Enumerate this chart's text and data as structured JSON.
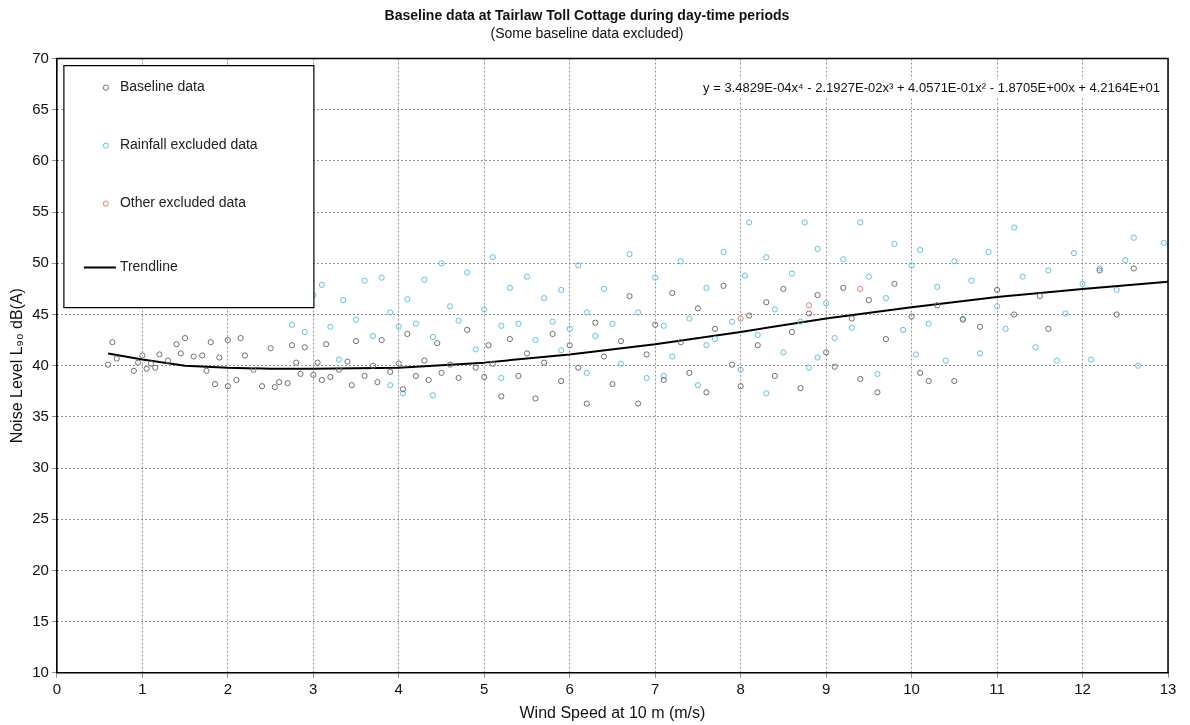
{
  "chart_data": {
    "type": "scatter",
    "title": "Baseline data at Tairlaw Toll Cottage during day-time periods",
    "subtitle": "(Some baseline data excluded)",
    "xlabel": "Wind Speed at 10 m (m/s)",
    "ylabel": "Noise Level L₉₀ dB(A)",
    "xlim": [
      0,
      13
    ],
    "xticks": [
      0,
      1,
      2,
      3,
      4,
      5,
      6,
      7,
      8,
      9,
      10,
      11,
      12,
      13
    ],
    "ylim": [
      10,
      70
    ],
    "yticks": [
      10,
      15,
      20,
      25,
      30,
      35,
      40,
      45,
      50,
      55,
      60,
      65,
      70
    ],
    "grid": true,
    "legend": "top left",
    "marker": "circle",
    "annotations": [
      "y = 3.4829E-04x⁴ - 2.1927E-02x³ + 4.0571E-01x² - 1.8705E+00x + 4.2164E+01"
    ],
    "series": [
      {
        "name": "Baseline data",
        "type": "scatter",
        "color": "#707070",
        "x": [
          0.6,
          0.65,
          0.7,
          0.9,
          0.95,
          1.0,
          1.05,
          1.1,
          1.15,
          1.2,
          1.3,
          1.4,
          1.45,
          1.5,
          1.6,
          1.7,
          1.75,
          1.8,
          1.85,
          1.9,
          2.0,
          2.0,
          2.1,
          2.15,
          2.2,
          2.3,
          2.4,
          2.5,
          2.55,
          2.6,
          2.7,
          2.75,
          2.8,
          2.85,
          2.9,
          3.0,
          3.05,
          3.1,
          3.15,
          3.2,
          3.3,
          3.4,
          3.45,
          3.5,
          3.6,
          3.7,
          3.75,
          3.8,
          3.9,
          4.0,
          4.05,
          4.1,
          4.2,
          4.3,
          4.35,
          4.45,
          4.5,
          4.6,
          4.7,
          4.8,
          4.9,
          5.0,
          5.05,
          5.1,
          5.2,
          5.3,
          5.4,
          5.5,
          5.6,
          5.7,
          5.8,
          5.9,
          6.0,
          6.1,
          6.2,
          6.3,
          6.4,
          6.5,
          6.6,
          6.7,
          6.8,
          6.9,
          7.0,
          7.1,
          7.2,
          7.3,
          7.4,
          7.5,
          7.6,
          7.7,
          7.8,
          7.9,
          8.0,
          8.1,
          8.2,
          8.3,
          8.4,
          8.5,
          8.6,
          8.7,
          8.8,
          8.9,
          9.0,
          9.1,
          9.2,
          9.3,
          9.4,
          9.5,
          9.6,
          9.7,
          9.8,
          10.0,
          10.1,
          10.2,
          10.3,
          10.5,
          10.6,
          10.8,
          11.0,
          11.2,
          11.5,
          11.6,
          12.2,
          12.4,
          12.6
        ],
        "values": [
          40.1,
          42.3,
          40.7,
          39.5,
          40.3,
          41.0,
          39.7,
          40.2,
          39.8,
          41.1,
          40.5,
          42.1,
          41.2,
          42.7,
          40.9,
          41.0,
          39.5,
          42.3,
          38.2,
          40.8,
          42.5,
          38.0,
          38.6,
          42.7,
          41.0,
          39.6,
          38.0,
          41.7,
          37.9,
          38.4,
          38.3,
          42.0,
          40.3,
          39.2,
          41.8,
          39.1,
          40.3,
          38.6,
          42.1,
          38.9,
          39.6,
          40.4,
          38.1,
          42.4,
          39.0,
          40.0,
          38.4,
          42.5,
          39.4,
          40.2,
          37.7,
          43.1,
          39.0,
          40.5,
          38.6,
          42.2,
          39.3,
          40.1,
          38.8,
          43.5,
          39.8,
          38.9,
          42.0,
          40.2,
          37.0,
          42.6,
          39.0,
          41.2,
          36.8,
          40.3,
          43.1,
          38.5,
          42.0,
          39.8,
          36.3,
          44.2,
          40.9,
          38.2,
          42.4,
          46.8,
          36.3,
          41.1,
          44.0,
          38.6,
          47.1,
          42.3,
          39.3,
          45.6,
          37.4,
          43.6,
          47.8,
          40.1,
          38.0,
          44.9,
          42.0,
          46.2,
          39.0,
          47.5,
          43.3,
          37.8,
          45.1,
          46.9,
          41.3,
          39.9,
          47.6,
          44.6,
          38.7,
          46.4,
          37.4,
          42.6,
          48.0,
          44.8,
          39.3,
          38.5,
          45.9,
          38.5,
          44.5,
          43.8,
          47.4,
          45.0,
          46.8,
          43.6,
          49.3,
          45.0,
          49.5
        ]
      },
      {
        "name": "Rainfall excluded data",
        "type": "scatter",
        "color": "#5bc4e6",
        "x": [
          2.75,
          2.9,
          3.0,
          3.1,
          3.2,
          3.35,
          3.5,
          3.6,
          3.7,
          3.8,
          3.9,
          4.0,
          4.05,
          4.1,
          4.2,
          4.3,
          4.4,
          4.5,
          4.6,
          4.7,
          4.8,
          4.9,
          5.0,
          5.1,
          5.2,
          5.3,
          5.4,
          5.5,
          5.6,
          5.7,
          5.8,
          5.9,
          6.0,
          6.1,
          6.2,
          6.3,
          6.4,
          6.5,
          6.6,
          6.7,
          6.8,
          6.9,
          7.0,
          7.1,
          7.2,
          7.3,
          7.4,
          7.5,
          7.6,
          7.7,
          7.8,
          7.9,
          8.0,
          8.05,
          8.1,
          8.2,
          8.3,
          8.4,
          8.5,
          8.6,
          8.7,
          8.75,
          8.8,
          8.9,
          9.0,
          9.1,
          9.2,
          9.3,
          9.4,
          9.5,
          9.6,
          9.7,
          9.8,
          9.9,
          10.0,
          10.05,
          10.1,
          10.2,
          10.3,
          10.4,
          10.5,
          10.6,
          10.7,
          10.8,
          10.9,
          11.0,
          11.1,
          11.2,
          11.3,
          11.45,
          11.6,
          11.7,
          11.8,
          11.9,
          12.0,
          12.1,
          12.2,
          12.4,
          12.5,
          12.6,
          12.65,
          12.95,
          3.3,
          3.9,
          4.4,
          5.2,
          5.9,
          6.2,
          7.1,
          7.6,
          8.3,
          8.9
        ],
        "values": [
          44.0,
          43.3,
          46.9,
          47.9,
          43.8,
          46.4,
          44.5,
          48.3,
          42.9,
          48.6,
          45.2,
          43.8,
          37.3,
          46.5,
          44.1,
          48.4,
          42.8,
          50.0,
          45.8,
          44.4,
          49.1,
          41.6,
          45.5,
          50.6,
          43.9,
          47.6,
          44.1,
          48.7,
          42.5,
          46.6,
          44.3,
          47.4,
          43.6,
          49.8,
          45.2,
          42.9,
          47.5,
          44.1,
          40.2,
          50.9,
          45.2,
          38.8,
          48.6,
          43.9,
          40.9,
          50.2,
          44.6,
          38.1,
          47.6,
          42.6,
          51.1,
          44.3,
          39.6,
          48.8,
          54.0,
          43.0,
          50.6,
          45.5,
          41.3,
          49.0,
          44.3,
          54.0,
          39.8,
          51.4,
          46.1,
          42.7,
          50.4,
          43.7,
          54.0,
          48.7,
          39.2,
          46.6,
          51.9,
          43.5,
          49.8,
          41.1,
          51.3,
          44.1,
          47.7,
          40.5,
          50.2,
          44.6,
          48.3,
          41.2,
          51.1,
          45.8,
          43.6,
          53.5,
          48.7,
          41.8,
          49.3,
          40.5,
          45.1,
          51.0,
          48.0,
          40.6,
          49.5,
          47.4,
          50.3,
          52.5,
          40.0,
          52.0,
          40.6,
          38.1,
          37.1,
          38.8,
          41.5,
          39.3,
          39.0,
          42.0,
          37.3,
          40.8
        ]
      },
      {
        "name": "Other excluded data",
        "type": "scatter",
        "color": "#e0826a",
        "x": [
          8.0,
          8.8,
          9.4
        ],
        "values": [
          44.6,
          45.9,
          47.5
        ]
      },
      {
        "name": "Trendline",
        "type": "line",
        "color": "#000000",
        "marker": "none",
        "x": [
          0.6,
          1.0,
          1.5,
          2.0,
          2.5,
          3.0,
          4.0,
          5.0,
          6.0,
          7.0,
          8.0,
          9.0,
          10.0,
          11.0,
          12.0,
          13.0
        ],
        "values": [
          41.2,
          40.6,
          40.0,
          39.8,
          39.7,
          39.7,
          39.8,
          40.3,
          41.1,
          42.1,
          43.3,
          44.6,
          45.7,
          46.7,
          47.5,
          48.2
        ]
      }
    ]
  }
}
